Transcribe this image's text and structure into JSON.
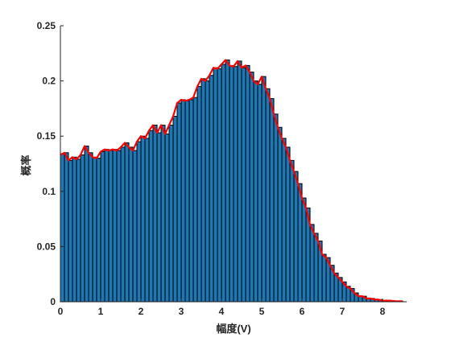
{
  "chart_data": {
    "type": "bar",
    "overlay": "line",
    "xlabel": "幅度(V)",
    "ylabel": "概率",
    "xlim": [
      0,
      8.6
    ],
    "ylim": [
      0,
      0.25
    ],
    "xticks": [
      "0",
      "1",
      "2",
      "3",
      "4",
      "5",
      "6",
      "7",
      "8"
    ],
    "yticks": [
      "0",
      "0.05",
      "0.1",
      "0.15",
      "0.2",
      "0.25"
    ],
    "bar_color": "#1f77b4",
    "bar_edge_color": "#000000",
    "line_color": "#ff0000",
    "grid": false,
    "bin_width": 0.1,
    "x": [
      0.05,
      0.15,
      0.25,
      0.35,
      0.45,
      0.55,
      0.65,
      0.75,
      0.85,
      0.95,
      1.05,
      1.15,
      1.25,
      1.35,
      1.45,
      1.55,
      1.65,
      1.75,
      1.85,
      1.95,
      2.05,
      2.15,
      2.25,
      2.35,
      2.45,
      2.55,
      2.65,
      2.75,
      2.85,
      2.95,
      3.05,
      3.15,
      3.25,
      3.35,
      3.45,
      3.55,
      3.65,
      3.75,
      3.85,
      3.95,
      4.05,
      4.15,
      4.25,
      4.35,
      4.45,
      4.55,
      4.65,
      4.75,
      4.85,
      4.95,
      5.05,
      5.15,
      5.25,
      5.35,
      5.45,
      5.55,
      5.65,
      5.75,
      5.85,
      5.95,
      6.05,
      6.15,
      6.25,
      6.35,
      6.45,
      6.55,
      6.65,
      6.75,
      6.85,
      6.95,
      7.05,
      7.15,
      7.25,
      7.35,
      7.45,
      7.55,
      7.65,
      7.75,
      7.85,
      7.95,
      8.05,
      8.15,
      8.25,
      8.35,
      8.45
    ],
    "values": [
      0.134,
      0.135,
      0.128,
      0.131,
      0.129,
      0.133,
      0.141,
      0.135,
      0.131,
      0.13,
      0.136,
      0.138,
      0.137,
      0.138,
      0.137,
      0.14,
      0.144,
      0.14,
      0.137,
      0.145,
      0.15,
      0.148,
      0.155,
      0.16,
      0.153,
      0.16,
      0.152,
      0.16,
      0.168,
      0.18,
      0.183,
      0.182,
      0.183,
      0.185,
      0.195,
      0.202,
      0.2,
      0.205,
      0.212,
      0.211,
      0.215,
      0.219,
      0.214,
      0.213,
      0.218,
      0.212,
      0.214,
      0.208,
      0.2,
      0.197,
      0.204,
      0.193,
      0.184,
      0.17,
      0.158,
      0.148,
      0.14,
      0.128,
      0.118,
      0.107,
      0.094,
      0.085,
      0.07,
      0.062,
      0.055,
      0.043,
      0.04,
      0.033,
      0.026,
      0.022,
      0.018,
      0.014,
      0.012,
      0.008,
      0.005,
      0.005,
      0.003,
      0.003,
      0.002,
      0.002,
      0.001,
      0.001,
      0.001,
      0.0005,
      0.0005
    ],
    "line_x": [
      0.0,
      0.1,
      0.2,
      0.3,
      0.4,
      0.5,
      0.6,
      0.7,
      0.8,
      0.9,
      1.0,
      1.1,
      1.2,
      1.3,
      1.4,
      1.5,
      1.6,
      1.7,
      1.8,
      1.9,
      2.0,
      2.1,
      2.2,
      2.3,
      2.4,
      2.5,
      2.6,
      2.7,
      2.8,
      2.9,
      3.0,
      3.1,
      3.2,
      3.3,
      3.4,
      3.5,
      3.6,
      3.7,
      3.8,
      3.9,
      4.0,
      4.1,
      4.2,
      4.3,
      4.4,
      4.5,
      4.6,
      4.7,
      4.8,
      4.9,
      5.0,
      5.1,
      5.2,
      5.3,
      5.4,
      5.5,
      5.6,
      5.7,
      5.8,
      5.9,
      6.0,
      6.1,
      6.2,
      6.3,
      6.4,
      6.5,
      6.6,
      6.7,
      6.8,
      6.9,
      7.0,
      7.1,
      7.2,
      7.3,
      7.4,
      7.5,
      7.6,
      7.7,
      7.8,
      7.9,
      8.0,
      8.1,
      8.2,
      8.3,
      8.5
    ],
    "line_y": [
      0.133,
      0.135,
      0.128,
      0.131,
      0.129,
      0.133,
      0.141,
      0.135,
      0.131,
      0.13,
      0.136,
      0.138,
      0.137,
      0.138,
      0.137,
      0.14,
      0.144,
      0.14,
      0.137,
      0.145,
      0.15,
      0.148,
      0.155,
      0.16,
      0.153,
      0.16,
      0.152,
      0.16,
      0.168,
      0.18,
      0.183,
      0.182,
      0.183,
      0.185,
      0.195,
      0.202,
      0.2,
      0.205,
      0.212,
      0.211,
      0.215,
      0.219,
      0.214,
      0.213,
      0.218,
      0.212,
      0.214,
      0.208,
      0.2,
      0.197,
      0.204,
      0.193,
      0.184,
      0.17,
      0.158,
      0.148,
      0.14,
      0.128,
      0.118,
      0.107,
      0.094,
      0.085,
      0.07,
      0.062,
      0.055,
      0.043,
      0.04,
      0.033,
      0.026,
      0.022,
      0.018,
      0.014,
      0.012,
      0.008,
      0.005,
      0.005,
      0.003,
      0.003,
      0.002,
      0.002,
      0.001,
      0.001,
      0.001,
      0.0005,
      0.0005
    ]
  }
}
